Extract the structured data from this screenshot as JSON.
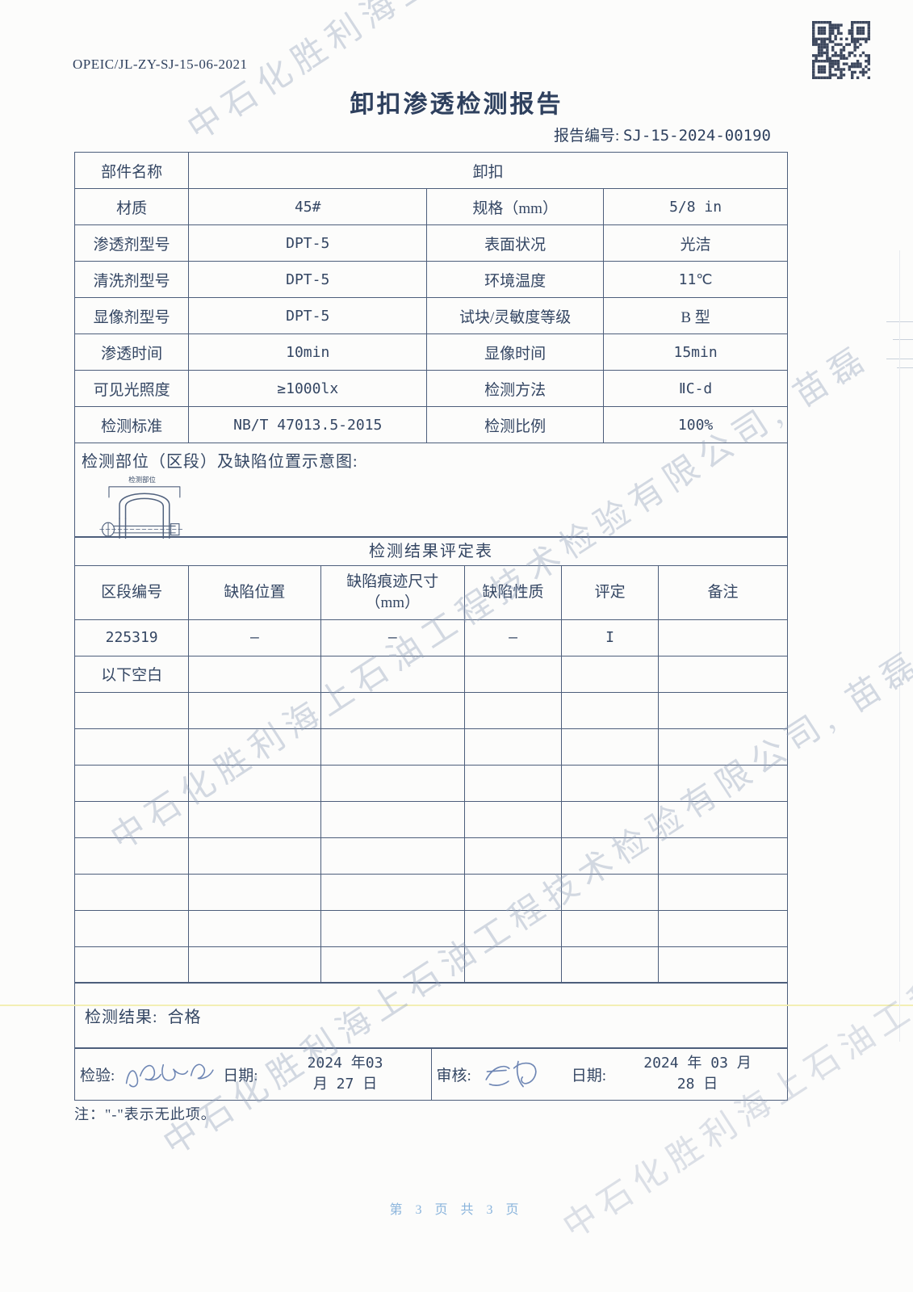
{
  "document": {
    "code": "OPEIC/JL-ZY-SJ-15-06-2021",
    "title": "卸扣渗透检测报告",
    "report_no_label": "报告编号:",
    "report_no": "SJ-15-2024-00190",
    "footer_note": "注：\"-\"表示无此项。",
    "page_footer": "第 3 页 共 3 页"
  },
  "watermark": {
    "text": "中石化胜利海上石油工程技术检验有限公司, 苗磊"
  },
  "info_table": {
    "rows": [
      [
        {
          "text": "部件名称",
          "kind": "label"
        },
        {
          "text": "卸扣",
          "kind": "value",
          "span": 3
        }
      ],
      [
        {
          "text": "材质",
          "kind": "label"
        },
        {
          "text": "45#",
          "kind": "value"
        },
        {
          "text": "规格（mm）",
          "kind": "label"
        },
        {
          "text": "5/8 in",
          "kind": "value"
        }
      ],
      [
        {
          "text": "渗透剂型号",
          "kind": "label"
        },
        {
          "text": "DPT-5",
          "kind": "value"
        },
        {
          "text": "表面状况",
          "kind": "label"
        },
        {
          "text": "光洁",
          "kind": "value"
        }
      ],
      [
        {
          "text": "清洗剂型号",
          "kind": "label"
        },
        {
          "text": "DPT-5",
          "kind": "value"
        },
        {
          "text": "环境温度",
          "kind": "label"
        },
        {
          "text": "11℃",
          "kind": "value"
        }
      ],
      [
        {
          "text": "显像剂型号",
          "kind": "label"
        },
        {
          "text": "DPT-5",
          "kind": "value"
        },
        {
          "text": "试块/灵敏度等级",
          "kind": "label"
        },
        {
          "text": "B 型",
          "kind": "value"
        }
      ],
      [
        {
          "text": "渗透时间",
          "kind": "label"
        },
        {
          "text": "10min",
          "kind": "value"
        },
        {
          "text": "显像时间",
          "kind": "label"
        },
        {
          "text": "15min",
          "kind": "value"
        }
      ],
      [
        {
          "text": "可见光照度",
          "kind": "label"
        },
        {
          "text": "≥1000lx",
          "kind": "value"
        },
        {
          "text": "检测方法",
          "kind": "label"
        },
        {
          "text": "ⅡC-d",
          "kind": "value"
        }
      ],
      [
        {
          "text": "检测标准",
          "kind": "label"
        },
        {
          "text": "NB/T 47013.5-2015",
          "kind": "value"
        },
        {
          "text": "检测比例",
          "kind": "label"
        },
        {
          "text": "100%",
          "kind": "value"
        }
      ]
    ]
  },
  "diagram": {
    "heading": "检测部位（区段）及缺陷位置示意图:",
    "area_label": "检测部位"
  },
  "results_table": {
    "title": "检测结果评定表",
    "headers": [
      "区段编号",
      "缺陷位置",
      "缺陷痕迹尺寸\n（mm）",
      "缺陷性质",
      "评定",
      "备注"
    ],
    "rows": [
      [
        "225319",
        "–",
        "–",
        "–",
        "I",
        ""
      ],
      [
        "以下空白",
        "",
        "",
        "",
        "",
        ""
      ],
      [
        "",
        "",
        "",
        "",
        "",
        ""
      ],
      [
        "",
        "",
        "",
        "",
        "",
        ""
      ],
      [
        "",
        "",
        "",
        "",
        "",
        ""
      ],
      [
        "",
        "",
        "",
        "",
        "",
        ""
      ],
      [
        "",
        "",
        "",
        "",
        "",
        ""
      ],
      [
        "",
        "",
        "",
        "",
        "",
        ""
      ],
      [
        "",
        "",
        "",
        "",
        "",
        ""
      ],
      [
        "",
        "",
        "",
        "",
        "",
        ""
      ]
    ]
  },
  "result": {
    "label": "检测结果:",
    "value": "合格"
  },
  "signatures": {
    "inspector_label": "检验:",
    "date_label": "日期:",
    "inspector_date": "2024 年03\n月 27 日",
    "reviewer_label": "审核:",
    "reviewer_date": "2024 年 03 月\n28 日"
  },
  "colors": {
    "ink": "#344663",
    "table_border": "#4d5e7b",
    "watermark": "#96a3bc",
    "page_footer_blue": "#8ab4dc",
    "signature_blue": "#44639f",
    "scan_yellow_line": "#f2edac",
    "qr_dark": "#2c3850"
  }
}
